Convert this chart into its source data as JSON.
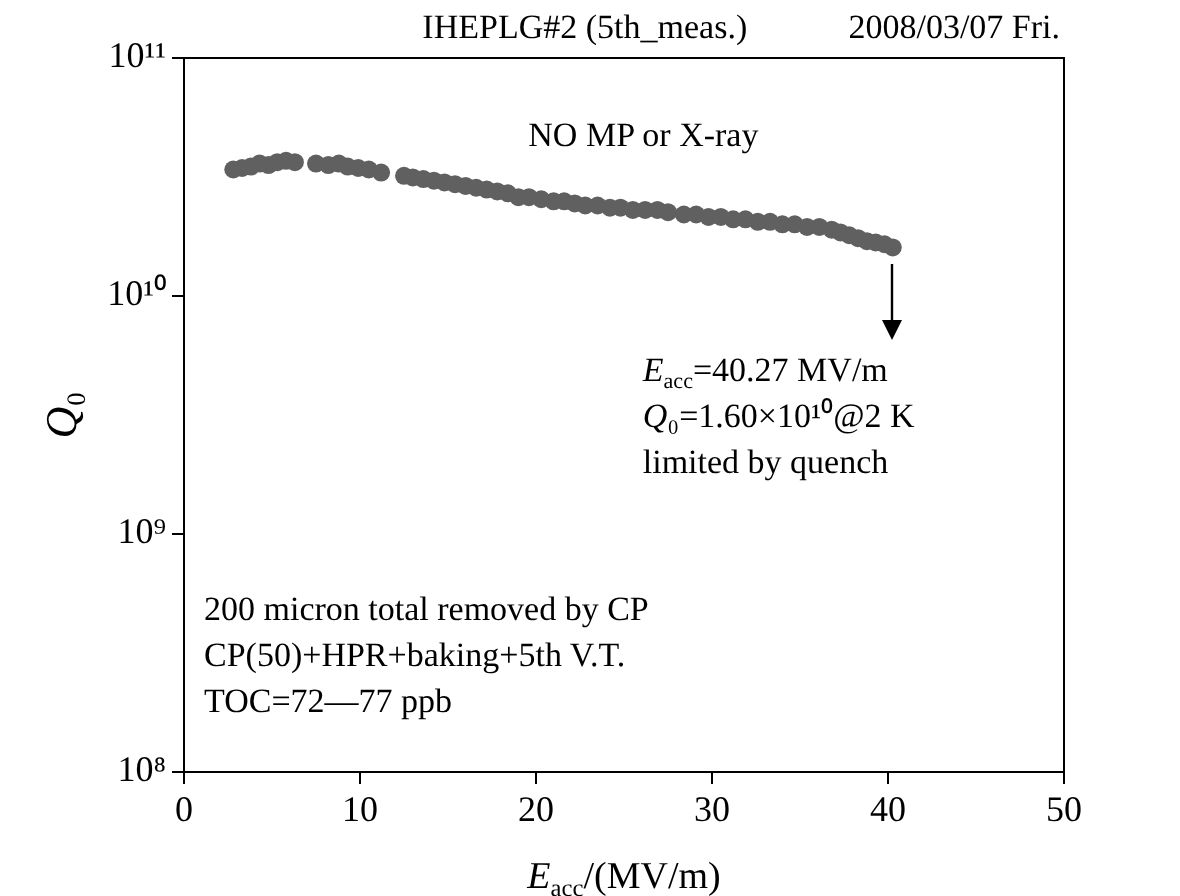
{
  "chart_data": {
    "type": "scatter",
    "title": "IHEPLG#2 (5th_meas.)",
    "subtitle": "2008/03/07 Fri.",
    "xlabel": "E$_{acc}$/(MV/m)",
    "ylabel": "Q₀",
    "x": [
      2.8,
      3.3,
      3.8,
      4.3,
      4.8,
      5.3,
      5.8,
      6.3,
      7.5,
      8.2,
      8.8,
      9.3,
      9.9,
      10.5,
      11.2,
      12.5,
      13.0,
      13.6,
      14.2,
      14.8,
      15.4,
      16.0,
      16.6,
      17.2,
      17.8,
      18.4,
      19.0,
      19.6,
      20.3,
      21.0,
      21.6,
      22.2,
      22.8,
      23.5,
      24.2,
      24.8,
      25.5,
      26.2,
      26.9,
      27.5,
      28.4,
      29.1,
      29.8,
      30.5,
      31.2,
      31.9,
      32.6,
      33.3,
      34.0,
      34.7,
      35.4,
      36.1,
      36.8,
      37.3,
      37.8,
      38.3,
      38.8,
      39.3,
      39.8,
      40.27
    ],
    "series": [
      {
        "color": "#606060",
        "values": [
          34000000000.0,
          34500000000.0,
          35000000000.0,
          36000000000.0,
          35500000000.0,
          36500000000.0,
          37000000000.0,
          36500000000.0,
          36000000000.0,
          35500000000.0,
          36000000000.0,
          35000000000.0,
          34500000000.0,
          34000000000.0,
          33000000000.0,
          32000000000.0,
          31500000000.0,
          31000000000.0,
          30500000000.0,
          30000000000.0,
          29500000000.0,
          29000000000.0,
          28500000000.0,
          28000000000.0,
          27500000000.0,
          27000000000.0,
          26000000000.0,
          26000000000.0,
          25500000000.0,
          25000000000.0,
          25000000000.0,
          24500000000.0,
          24000000000.0,
          24000000000.0,
          23500000000.0,
          23500000000.0,
          23000000000.0,
          23000000000.0,
          23000000000.0,
          22500000000.0,
          22000000000.0,
          22000000000.0,
          21500000000.0,
          21500000000.0,
          21000000000.0,
          21000000000.0,
          20500000000.0,
          20500000000.0,
          20000000000.0,
          20000000000.0,
          19500000000.0,
          19500000000.0,
          19000000000.0,
          18500000000.0,
          18000000000.0,
          17500000000.0,
          17000000000.0,
          16800000000.0,
          16500000000.0,
          16000000000.0
        ]
      }
    ],
    "xlim": [
      0,
      50
    ],
    "xticks": [
      0,
      10,
      20,
      30,
      40,
      50
    ],
    "ylim": [
      100000000.0,
      100000000000.0
    ],
    "yticks": [
      {
        "value": 100000000.0,
        "label": "10⁸"
      },
      {
        "value": 1000000000.0,
        "label": "10⁹"
      },
      {
        "value": 10000000000.0,
        "label": "10¹⁰"
      },
      {
        "value": 100000000000.0,
        "label": "10¹¹"
      }
    ],
    "log": "y",
    "grid": false,
    "legend": false,
    "marker": "circle",
    "annotations": [
      {
        "text": "E$_{acc}$=40.27 MV/m\nQ₀=1.60×10¹⁰@2 K\nlimited by quench",
        "x": 40.27,
        "y": 16000000000.0
      },
      "NO MP or X-ray",
      "200 micron total removed by CP",
      "CP(50)+HPR+baking+5th V.T.",
      "TOC=72—77 ppb"
    ]
  }
}
